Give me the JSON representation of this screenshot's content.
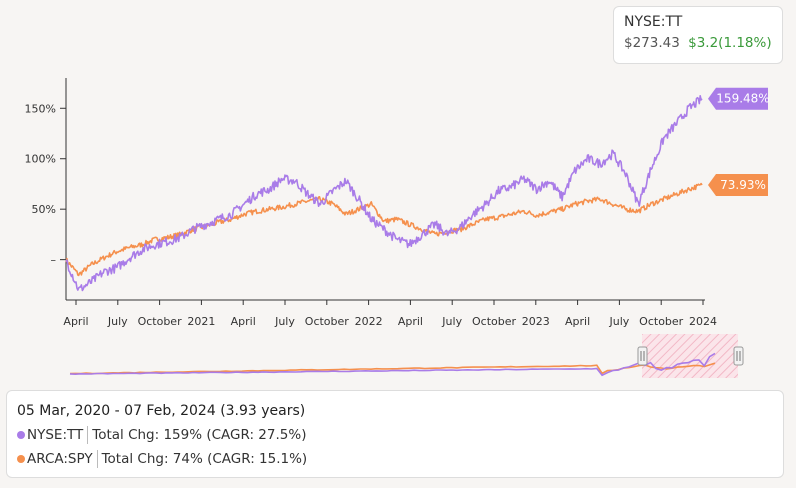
{
  "quote": {
    "symbol": "NYSE:TT",
    "price": "$273.43",
    "change": "$3.2(1.18%)"
  },
  "summary": {
    "range": "05 Mar, 2020 - 07 Feb, 2024 (3.93 years)",
    "rows": [
      {
        "symbol": "NYSE:TT",
        "stat": "Total Chg: 159% (CAGR: 27.5%)",
        "color": "#a97ce8"
      },
      {
        "symbol": "ARCA:SPY",
        "stat": "Total Chg: 74% (CAGR: 15.1%)",
        "color": "#f5904d"
      }
    ]
  },
  "chart_data": {
    "type": "line",
    "x_tick_labels": [
      "April",
      "July",
      "October",
      "2021",
      "April",
      "July",
      "October",
      "2022",
      "April",
      "July",
      "October",
      "2023",
      "April",
      "July",
      "October",
      "2024"
    ],
    "y_tick_labels": [
      "150%",
      "100%",
      "50%",
      "–"
    ],
    "y_ticks": [
      150,
      100,
      50,
      0
    ],
    "ylim": [
      -40,
      180
    ],
    "series": [
      {
        "name": "NYSE:TT",
        "color": "#a97ce8",
        "end_label": "159.48%",
        "values": [
          0,
          -30,
          -22,
          -12,
          -8,
          2,
          10,
          15,
          18,
          22,
          30,
          35,
          40,
          45,
          55,
          65,
          70,
          80,
          78,
          65,
          55,
          68,
          78,
          60,
          40,
          30,
          20,
          15,
          25,
          35,
          25,
          32,
          45,
          55,
          68,
          72,
          80,
          70,
          78,
          62,
          88,
          100,
          95,
          105,
          85,
          55,
          90,
          120,
          135,
          150,
          159.48
        ]
      },
      {
        "name": "ARCA:SPY",
        "color": "#f5904d",
        "end_label": "73.93%",
        "values": [
          0,
          -15,
          -5,
          2,
          8,
          12,
          15,
          20,
          22,
          25,
          30,
          33,
          37,
          40,
          45,
          48,
          50,
          52,
          55,
          58,
          60,
          55,
          45,
          50,
          55,
          38,
          40,
          35,
          30,
          25,
          28,
          30,
          35,
          40,
          42,
          45,
          48,
          44,
          47,
          50,
          55,
          58,
          60,
          55,
          50,
          48,
          55,
          60,
          65,
          70,
          73.93
        ]
      }
    ]
  }
}
